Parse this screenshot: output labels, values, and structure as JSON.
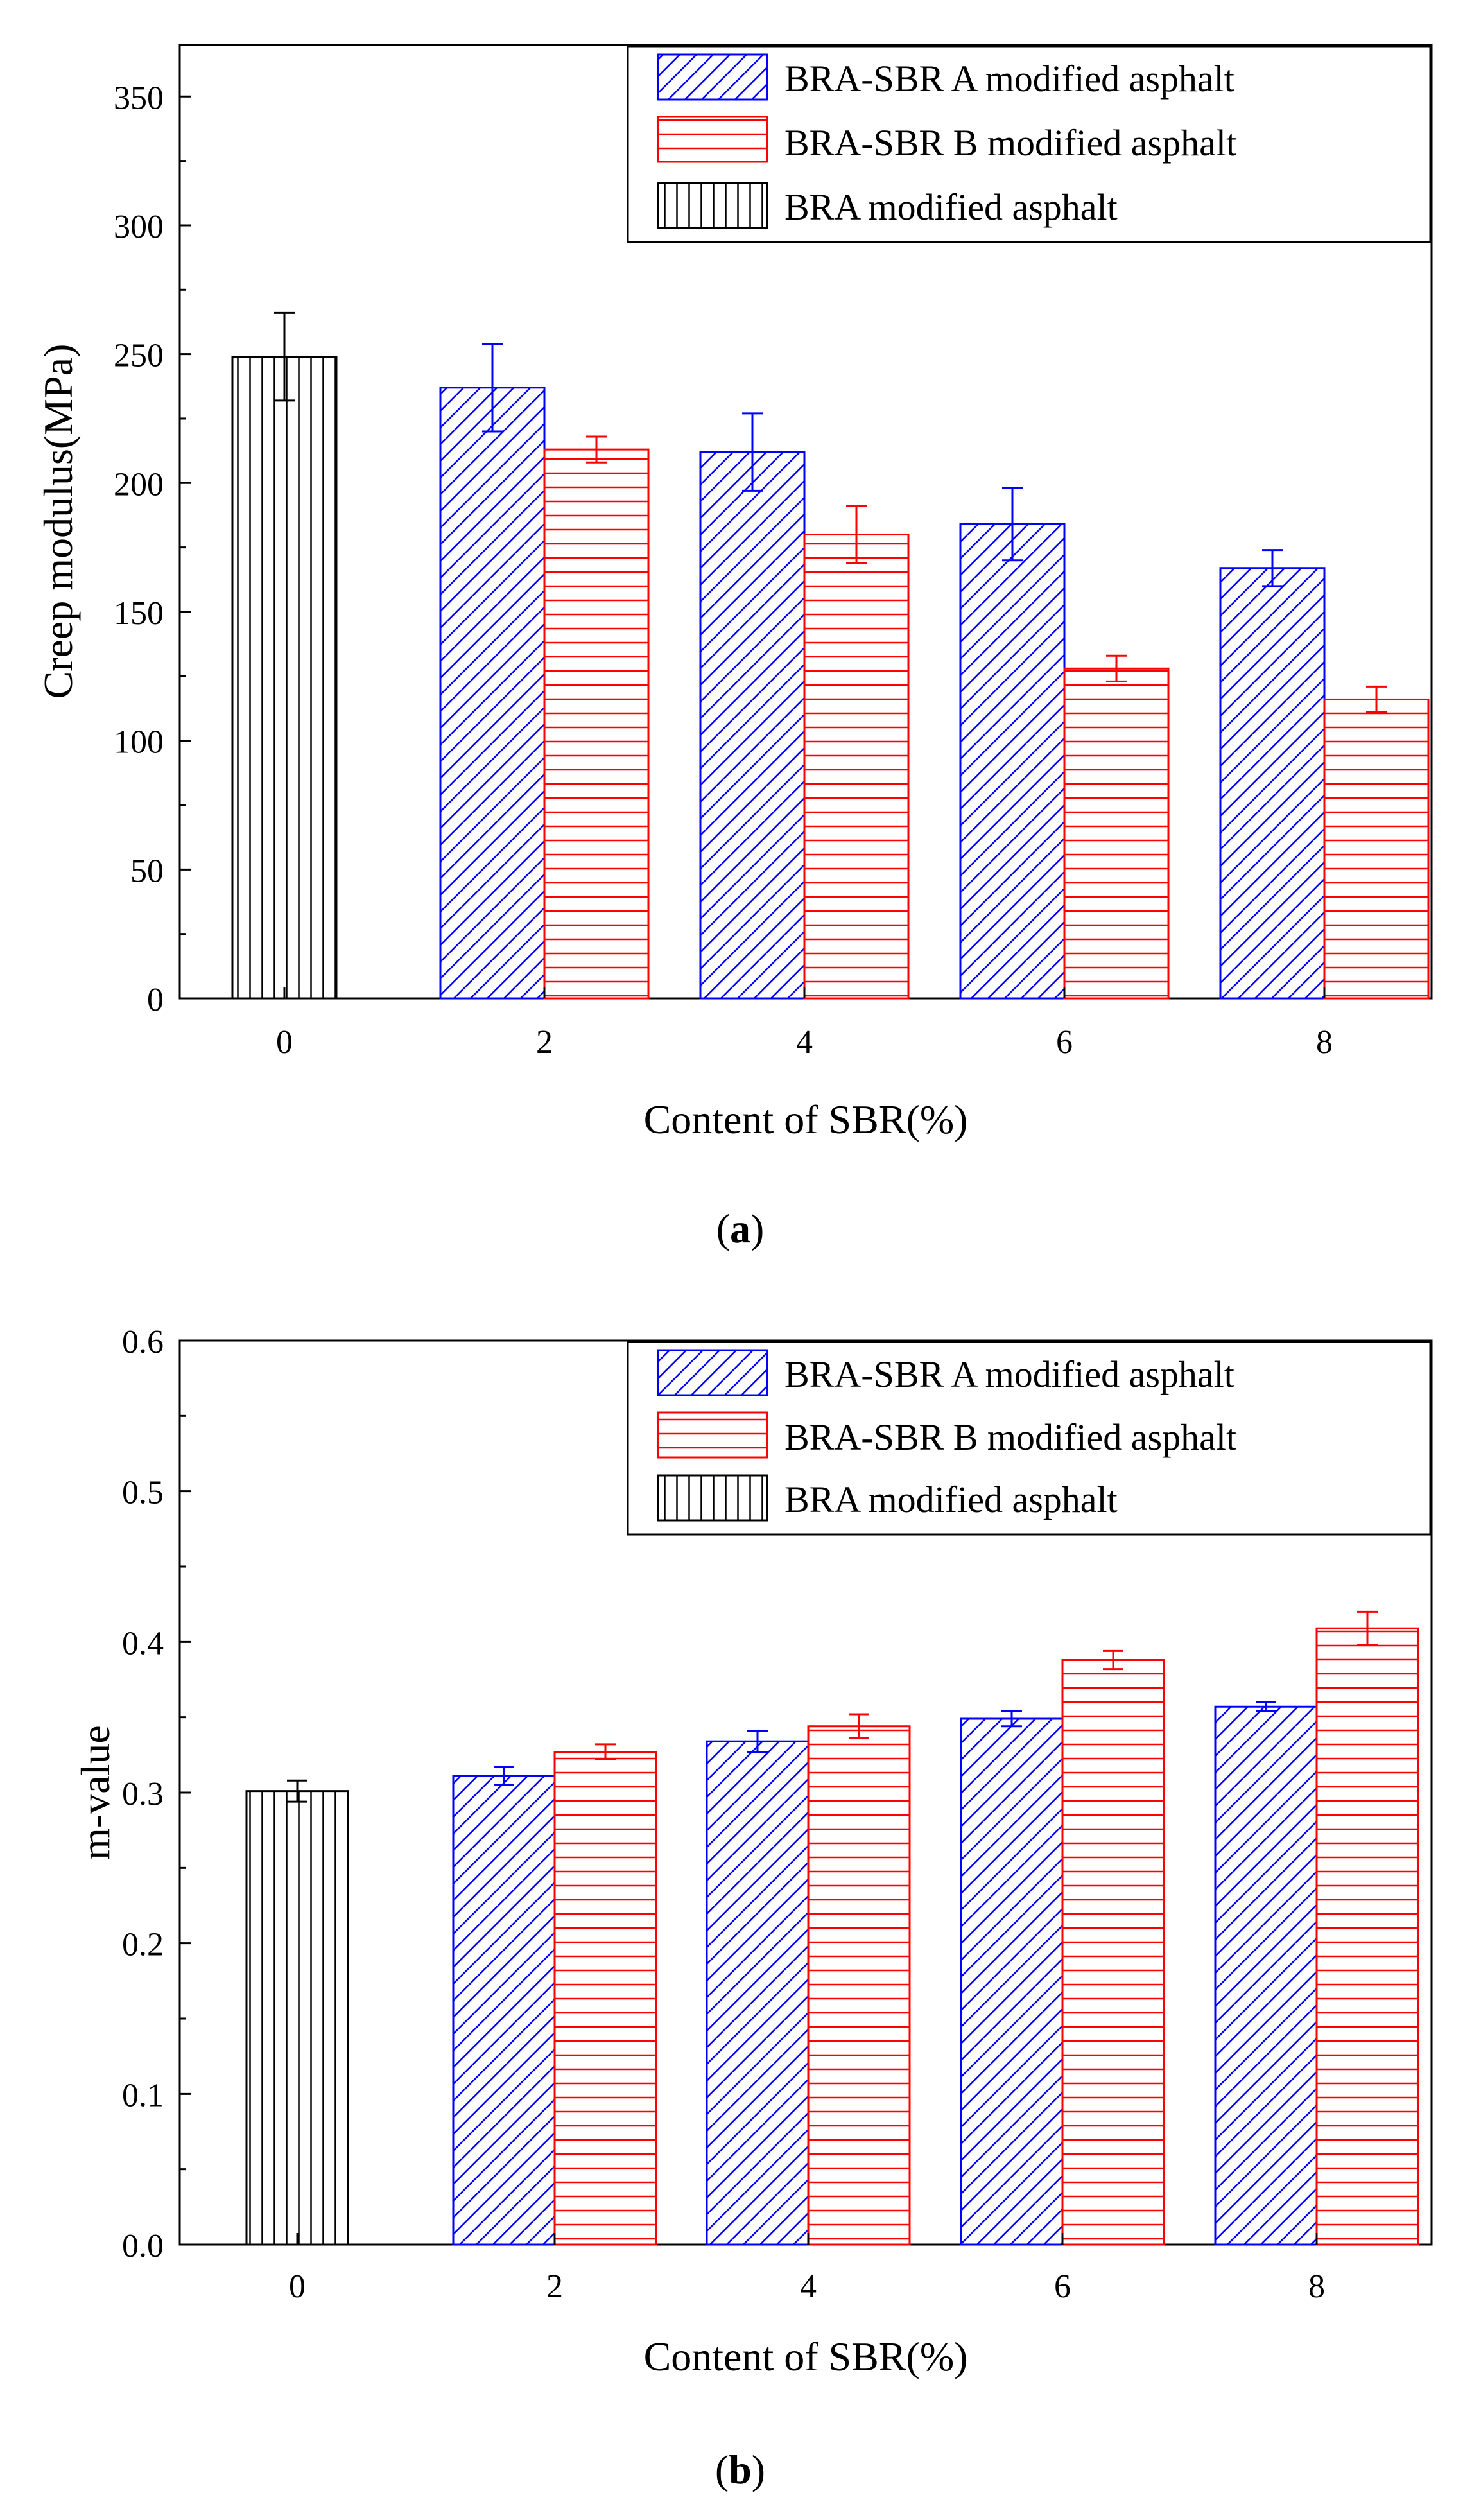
{
  "colors": {
    "series_a": "#0000ff",
    "series_b": "#ff0000",
    "series_bra": "#000000",
    "axis": "#000000"
  },
  "chart_data": [
    {
      "id": "creep",
      "type": "bar",
      "panel_label": "a",
      "title": "",
      "xlabel": "Content of SBR(%)",
      "ylabel": "Creep modulus(MPa)",
      "ylim": [
        0,
        370
      ],
      "yticks": [
        "0",
        "50",
        "100",
        "150",
        "200",
        "250",
        "300",
        "350"
      ],
      "ytick_values": [
        0,
        50,
        100,
        150,
        200,
        250,
        300,
        350
      ],
      "categories": [
        "0",
        "2",
        "4",
        "6",
        "8"
      ],
      "legend_position": "top-right",
      "series": [
        {
          "name": "BRA-SBR A modified asphalt",
          "color": "#0000ff",
          "pattern": "diagonal",
          "values": [
            null,
            237,
            212,
            184,
            167
          ],
          "errors": [
            null,
            17,
            15,
            14,
            7
          ]
        },
        {
          "name": "BRA-SBR B modified asphalt",
          "color": "#ff0000",
          "pattern": "horizontal",
          "values": [
            null,
            213,
            180,
            128,
            116
          ],
          "errors": [
            null,
            5,
            11,
            5,
            5
          ]
        },
        {
          "name": "BRA modified asphalt",
          "color": "#000000",
          "pattern": "vertical",
          "values": [
            249,
            null,
            null,
            null,
            null
          ],
          "errors": [
            17,
            null,
            null,
            null,
            null
          ]
        }
      ]
    },
    {
      "id": "mvalue",
      "type": "bar",
      "panel_label": "b",
      "title": "",
      "xlabel": "Content of SBR(%)",
      "ylabel": "m-value",
      "ylim": [
        0,
        0.6
      ],
      "yticks": [
        "0.0",
        "0.1",
        "0.2",
        "0.3",
        "0.4",
        "0.5",
        "0.6"
      ],
      "ytick_values": [
        0,
        0.1,
        0.2,
        0.3,
        0.4,
        0.5,
        0.6
      ],
      "categories": [
        "0",
        "2",
        "4",
        "6",
        "8"
      ],
      "legend_position": "top-right",
      "series": [
        {
          "name": "BRA-SBR A modified asphalt",
          "color": "#0000ff",
          "pattern": "diagonal",
          "values": [
            null,
            0.311,
            0.334,
            0.349,
            0.357
          ],
          "errors": [
            null,
            0.006,
            0.007,
            0.005,
            0.003
          ]
        },
        {
          "name": "BRA-SBR B modified asphalt",
          "color": "#ff0000",
          "pattern": "horizontal",
          "values": [
            null,
            0.327,
            0.344,
            0.388,
            0.409
          ],
          "errors": [
            null,
            0.005,
            0.008,
            0.006,
            0.011
          ]
        },
        {
          "name": "BRA modified asphalt",
          "color": "#000000",
          "pattern": "vertical",
          "values": [
            0.301,
            null,
            null,
            null,
            null
          ],
          "errors": [
            0.007,
            null,
            null,
            null,
            null
          ]
        }
      ]
    }
  ]
}
